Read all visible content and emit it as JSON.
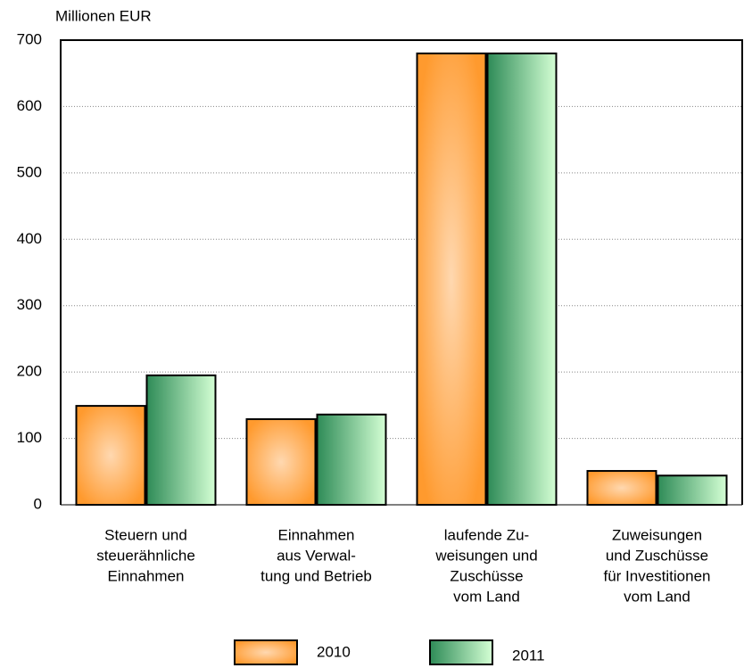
{
  "chart_data": {
    "type": "bar",
    "y_label": "Millionen EUR",
    "categories": [
      [
        "Steuern und",
        "steuerähnliche",
        "Einnahmen"
      ],
      [
        "Einnahmen",
        "aus Verwal-",
        "tung und Betrieb"
      ],
      [
        "laufende Zu-",
        "weisungen und",
        "Zuschüsse",
        "vom Land"
      ],
      [
        "Zuweisungen",
        "und Zuschüsse",
        "für Investitionen",
        "vom Land"
      ]
    ],
    "series": [
      {
        "name": "2010",
        "color": "#ff9a2e",
        "values": [
          149,
          129,
          680,
          51
        ]
      },
      {
        "name": "2011",
        "color": "#2e8b57",
        "values": [
          195,
          136,
          680,
          44
        ]
      }
    ],
    "ylim": [
      0,
      700
    ],
    "yticks": [
      0,
      100,
      200,
      300,
      400,
      500,
      600,
      700
    ],
    "grid": true,
    "legend": "bottom"
  }
}
